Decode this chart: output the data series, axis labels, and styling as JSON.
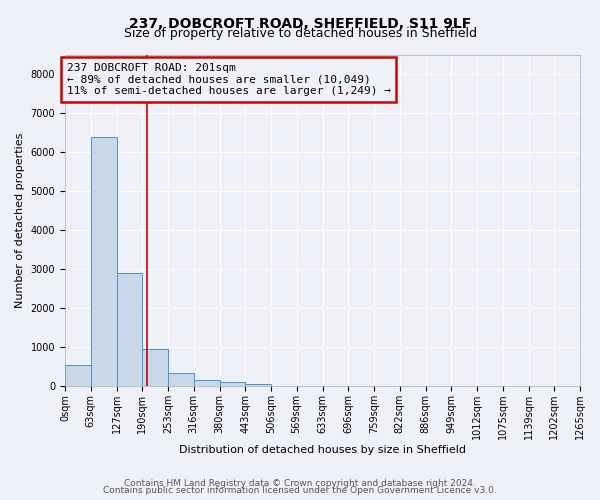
{
  "title": "237, DOBCROFT ROAD, SHEFFIELD, S11 9LF",
  "subtitle": "Size of property relative to detached houses in Sheffield",
  "xlabel": "Distribution of detached houses by size in Sheffield",
  "ylabel": "Number of detached properties",
  "bar_values": [
    550,
    6400,
    2900,
    950,
    350,
    150,
    100,
    60,
    0,
    0,
    0,
    0,
    0,
    0,
    0,
    0,
    0,
    0,
    0,
    0
  ],
  "bin_edges": [
    0,
    63,
    127,
    190,
    253,
    316,
    380,
    443,
    506,
    569,
    633,
    696,
    759,
    822,
    886,
    949,
    1012,
    1075,
    1139,
    1202,
    1265
  ],
  "x_tick_labels": [
    "0sqm",
    "63sqm",
    "127sqm",
    "190sqm",
    "253sqm",
    "316sqm",
    "380sqm",
    "443sqm",
    "506sqm",
    "569sqm",
    "633sqm",
    "696sqm",
    "759sqm",
    "822sqm",
    "886sqm",
    "949sqm",
    "1012sqm",
    "1075sqm",
    "1139sqm",
    "1202sqm",
    "1265sqm"
  ],
  "ylim": [
    0,
    8500
  ],
  "yticks": [
    0,
    1000,
    2000,
    3000,
    4000,
    5000,
    6000,
    7000,
    8000
  ],
  "property_size": 201,
  "bar_color": "#c8d8e8",
  "bar_edge_color": "#4a90d9",
  "red_line_color": "#cc0000",
  "annotation_line1": "237 DOBCROFT ROAD: 201sqm",
  "annotation_line2": "← 89% of detached houses are smaller (10,049)",
  "annotation_line3": "11% of semi-detached houses are larger (1,249) →",
  "footer_line1": "Contains HM Land Registry data © Crown copyright and database right 2024.",
  "footer_line2": "Contains public sector information licensed under the Open Government Licence v3.0.",
  "background_color": "#eef2f8",
  "grid_color": "#ffffff",
  "title_fontsize": 10,
  "subtitle_fontsize": 9,
  "axis_label_fontsize": 8,
  "tick_fontsize": 7,
  "annotation_fontsize": 8,
  "footer_fontsize": 6.5
}
